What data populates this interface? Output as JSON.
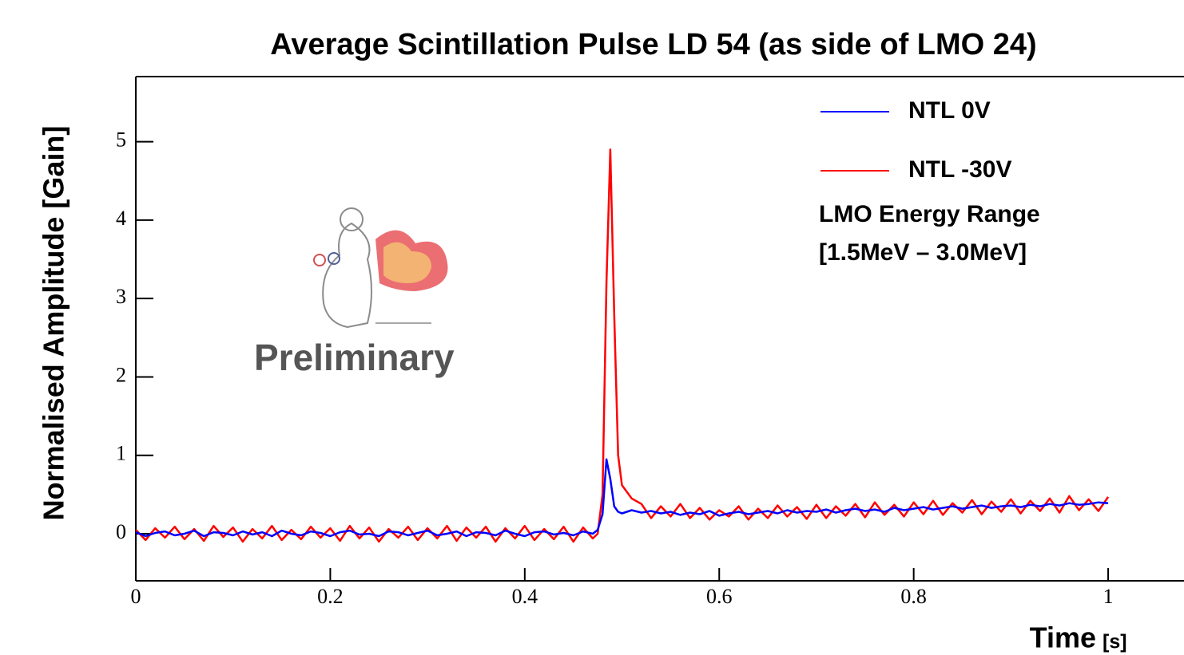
{
  "chart_data": {
    "type": "line",
    "title": "Average Scintillation Pulse LD 54 (as side of LMO 24)",
    "x_label": "Time",
    "x_label_unit": "[s]",
    "y_label": "Normalised Amplitude [Gain]",
    "watermark": "Preliminary",
    "annotations": [
      "LMO Energy Range",
      "[1.5MeV – 3.0MeV]"
    ],
    "legend": "top-right",
    "xlim": [
      0,
      1.078
    ],
    "ylim": [
      -0.6,
      5.83
    ],
    "xticks": [
      0,
      0.2,
      0.4,
      0.6,
      0.8,
      1
    ],
    "yticks": [
      0,
      1,
      2,
      3,
      4,
      5
    ],
    "x": [
      0,
      0.01,
      0.02,
      0.03,
      0.04,
      0.05,
      0.06,
      0.07,
      0.08,
      0.09,
      0.1,
      0.11,
      0.12,
      0.13,
      0.14,
      0.15,
      0.16,
      0.17,
      0.18,
      0.19,
      0.2,
      0.21,
      0.22,
      0.23,
      0.24,
      0.25,
      0.26,
      0.27,
      0.28,
      0.29,
      0.3,
      0.31,
      0.32,
      0.33,
      0.34,
      0.35,
      0.36,
      0.37,
      0.38,
      0.39,
      0.4,
      0.41,
      0.42,
      0.43,
      0.44,
      0.45,
      0.46,
      0.47,
      0.475,
      0.48,
      0.484,
      0.488,
      0.492,
      0.496,
      0.5,
      0.51,
      0.52,
      0.53,
      0.54,
      0.55,
      0.56,
      0.57,
      0.58,
      0.59,
      0.6,
      0.61,
      0.62,
      0.63,
      0.64,
      0.65,
      0.66,
      0.67,
      0.68,
      0.69,
      0.7,
      0.71,
      0.72,
      0.73,
      0.74,
      0.75,
      0.76,
      0.77,
      0.78,
      0.79,
      0.8,
      0.81,
      0.82,
      0.83,
      0.84,
      0.85,
      0.86,
      0.87,
      0.88,
      0.89,
      0.9,
      0.91,
      0.92,
      0.93,
      0.94,
      0.95,
      0.96,
      0.97,
      0.98,
      0.99,
      1.0
    ],
    "series": [
      {
        "name": "NTL 0V",
        "color": "#0000ff",
        "values": [
          0.02,
          -0.03,
          0.01,
          0.03,
          -0.02,
          0.0,
          0.04,
          -0.03,
          0.02,
          0.01,
          -0.02,
          0.03,
          -0.01,
          0.02,
          -0.03,
          0.04,
          0.0,
          -0.02,
          0.03,
          0.01,
          -0.03,
          0.02,
          0.04,
          -0.01,
          0.0,
          -0.03,
          0.03,
          0.02,
          -0.02,
          0.01,
          0.04,
          -0.02,
          0.0,
          0.03,
          -0.03,
          0.02,
          0.01,
          -0.02,
          0.04,
          0.0,
          -0.03,
          0.02,
          0.03,
          -0.01,
          0.01,
          -0.02,
          0.03,
          0.0,
          0.05,
          0.25,
          0.95,
          0.7,
          0.35,
          0.28,
          0.26,
          0.3,
          0.27,
          0.29,
          0.26,
          0.28,
          0.24,
          0.27,
          0.25,
          0.29,
          0.23,
          0.26,
          0.28,
          0.25,
          0.27,
          0.29,
          0.26,
          0.3,
          0.27,
          0.29,
          0.28,
          0.31,
          0.27,
          0.3,
          0.32,
          0.29,
          0.31,
          0.28,
          0.33,
          0.3,
          0.32,
          0.34,
          0.31,
          0.33,
          0.35,
          0.32,
          0.34,
          0.36,
          0.33,
          0.35,
          0.36,
          0.34,
          0.37,
          0.35,
          0.38,
          0.36,
          0.39,
          0.37,
          0.38,
          0.4,
          0.39
        ]
      },
      {
        "name": "NTL -30V",
        "color": "#ff0000",
        "values": [
          0.05,
          -0.08,
          0.07,
          -0.05,
          0.09,
          -0.07,
          0.06,
          -0.09,
          0.1,
          -0.04,
          0.08,
          -0.1,
          0.06,
          -0.06,
          0.1,
          -0.08,
          0.05,
          -0.07,
          0.09,
          -0.05,
          0.07,
          -0.09,
          0.1,
          -0.06,
          0.08,
          -0.1,
          0.06,
          -0.05,
          0.09,
          -0.08,
          0.07,
          -0.06,
          0.1,
          -0.09,
          0.08,
          -0.05,
          0.09,
          -0.1,
          0.07,
          -0.06,
          0.1,
          -0.08,
          0.06,
          -0.07,
          0.09,
          -0.1,
          0.08,
          -0.06,
          0.0,
          0.5,
          3.2,
          4.9,
          2.8,
          1.0,
          0.62,
          0.45,
          0.38,
          0.2,
          0.35,
          0.22,
          0.38,
          0.2,
          0.33,
          0.18,
          0.3,
          0.22,
          0.35,
          0.18,
          0.32,
          0.2,
          0.36,
          0.22,
          0.34,
          0.19,
          0.37,
          0.2,
          0.35,
          0.23,
          0.38,
          0.21,
          0.4,
          0.24,
          0.37,
          0.22,
          0.4,
          0.25,
          0.42,
          0.24,
          0.39,
          0.27,
          0.43,
          0.25,
          0.41,
          0.28,
          0.44,
          0.26,
          0.42,
          0.29,
          0.45,
          0.27,
          0.48,
          0.3,
          0.44,
          0.29,
          0.47
        ]
      }
    ]
  }
}
